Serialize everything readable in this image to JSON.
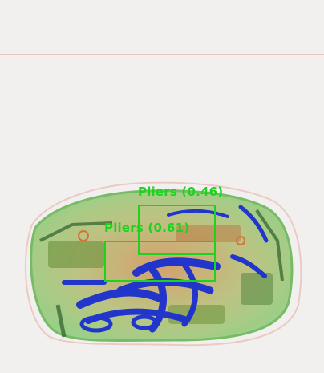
{
  "colors": {
    "background": "#f1f0ee",
    "scan_line": "#e6c8bd",
    "bag_green": "#7fbf6a",
    "bag_orange": "#e9a16a",
    "metal_blue": "#1a2fd0",
    "detection": "#1ed31e"
  },
  "detections": [
    {
      "label": "Pliers (0.46)"
    },
    {
      "label": "Pliers (0.61)"
    }
  ]
}
